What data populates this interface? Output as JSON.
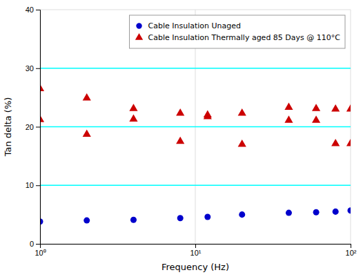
{
  "chart_data": {
    "type": "scatter",
    "xlabel": "Frequency (Hz)",
    "ylabel": "Tan delta (%)",
    "log": "x",
    "xlim": [
      1,
      100
    ],
    "xticks": [
      {
        "value": 1,
        "label": "10⁰"
      },
      {
        "value": 10,
        "label": "10¹"
      },
      {
        "value": 100,
        "label": "10²"
      }
    ],
    "ylim": [
      0,
      40
    ],
    "yticks": [
      0,
      10,
      20,
      30,
      40
    ],
    "grid": true,
    "legend": "upper right",
    "hlines": {
      "values": [
        10,
        20,
        30
      ],
      "color": "cyan"
    },
    "series": [
      {
        "name": "Cable Insulation Unaged",
        "color": "#0000cc",
        "marker": "circle",
        "x": [
          1.0,
          2.0,
          4.0,
          8.0,
          12.0,
          20.0,
          40.0,
          60.0,
          80.0,
          100.0
        ],
        "values": [
          3.8,
          4.0,
          4.1,
          4.4,
          4.6,
          5.0,
          5.3,
          5.4,
          5.5,
          5.7
        ]
      },
      {
        "name": "Cable Insulation Thermally aged 85 Days @ 110°C",
        "color": "#cc0000",
        "marker": "triangle",
        "x": [
          1.0,
          1.0,
          2.0,
          2.0,
          4.0,
          4.0,
          8.0,
          8.0,
          12.0,
          12.0,
          20.0,
          20.0,
          40.0,
          40.0,
          60.0,
          60.0,
          80.0,
          80.0,
          100.0,
          100.0
        ],
        "values": [
          26.5,
          21.2,
          24.9,
          18.7,
          23.1,
          21.3,
          22.3,
          17.5,
          22.0,
          21.7,
          22.3,
          17.0,
          23.3,
          21.1,
          23.1,
          21.1,
          23.0,
          17.1,
          23.0,
          17.1
        ]
      }
    ]
  }
}
